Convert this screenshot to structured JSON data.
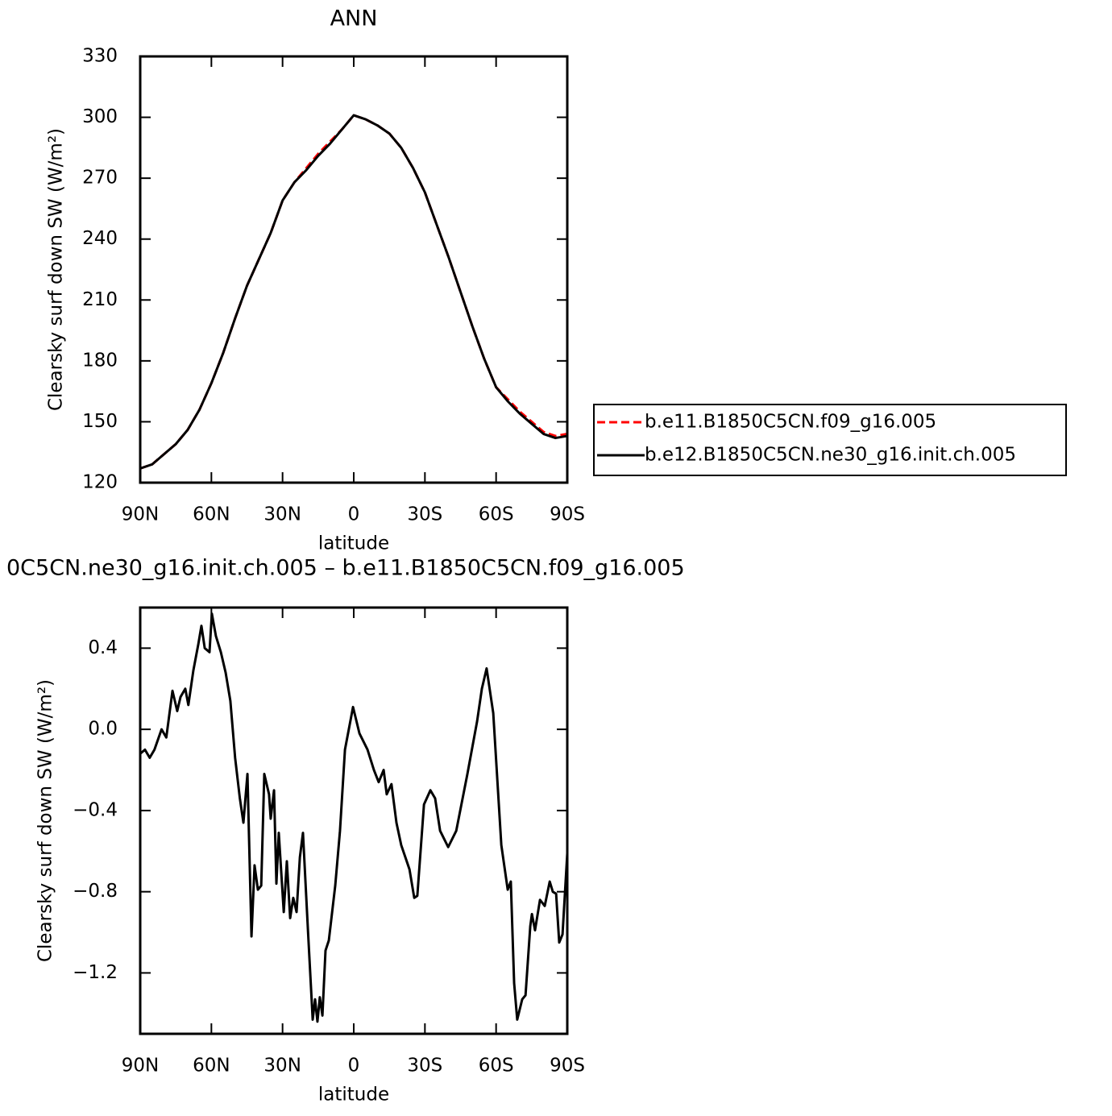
{
  "chart_data": [
    {
      "type": "line",
      "title": "ANN",
      "x_label": "latitude",
      "y_label": "Clearsky surf down SW (W/m²)",
      "x": [
        90,
        85,
        80,
        75,
        70,
        65,
        60,
        55,
        50,
        45,
        40,
        35,
        30,
        25,
        20,
        15,
        10,
        5,
        0,
        -5,
        -10,
        -15,
        -20,
        -25,
        -30,
        -35,
        -40,
        -45,
        -50,
        -55,
        -60,
        -65,
        -70,
        -75,
        -80,
        -85,
        -90
      ],
      "xlim": [
        90,
        -90
      ],
      "xticks": [
        {
          "value": 90,
          "label": "90N"
        },
        {
          "value": 60,
          "label": "60N"
        },
        {
          "value": 30,
          "label": "30N"
        },
        0,
        {
          "value": -30,
          "label": "30S"
        },
        {
          "value": -60,
          "label": "60S"
        },
        {
          "value": -90,
          "label": "90S"
        }
      ],
      "ylim": [
        120,
        330
      ],
      "yticks": [
        120,
        150,
        180,
        210,
        240,
        270,
        300,
        330
      ],
      "legend": "outside-right",
      "series": [
        {
          "name": "b.e11.B1850C5CN.f09_g16.005",
          "color": "#ff0000",
          "dash": "dashed",
          "values": [
            127,
            129,
            134,
            139,
            146,
            156,
            169,
            184,
            201,
            217,
            230,
            243,
            259,
            268,
            275,
            282,
            288,
            294,
            301,
            299,
            296,
            292,
            285,
            275,
            263,
            247,
            231,
            214,
            197,
            181,
            167,
            161,
            155,
            150,
            145,
            143,
            144
          ]
        },
        {
          "name": "b.e12.B1850C5CN.ne30_g16.init.ch.005",
          "color": "#000000",
          "dash": "solid",
          "values": [
            127,
            129,
            134,
            139,
            146,
            156,
            169,
            184,
            201,
            217,
            230,
            243,
            259,
            268,
            274,
            281,
            287,
            294,
            301,
            299,
            296,
            292,
            285,
            275,
            263,
            247,
            231,
            214,
            197,
            181,
            167,
            160,
            154,
            149,
            144,
            142,
            143
          ]
        }
      ]
    },
    {
      "type": "line",
      "title": "0C5CN.ne30_g16.init.ch.005 – b.e11.B1850C5CN.f09_g16.005",
      "x_label": "latitude",
      "y_label": "Clearsky surf down SW (W/m²)",
      "x": [
        90,
        88,
        86,
        84,
        81,
        79,
        76.4,
        74.4,
        73,
        71,
        69.7,
        67.6,
        65.5,
        64.2,
        62.8,
        60.8,
        59.8,
        58.1,
        56,
        54,
        52,
        50,
        48,
        46.5,
        44.8,
        43.1,
        41.8,
        40.4,
        39,
        37.7,
        35.7,
        35,
        33.6,
        32.6,
        31.6,
        29.5,
        28.2,
        26.8,
        25.5,
        24.1,
        22.7,
        21.4,
        19.3,
        17.3,
        16.3,
        15.3,
        14.3,
        13.2,
        11.9,
        10.5,
        7.8,
        5.8,
        3.7,
        0.3,
        -2.4,
        -5.8,
        -8.5,
        -10.5,
        -12.6,
        -13.9,
        -15.9,
        -18,
        -20,
        -23.5,
        -25.5,
        -26.8,
        -29.6,
        -32.3,
        -34.3,
        -36.4,
        -39.8,
        -43.2,
        -47.9,
        -52,
        -54,
        -56,
        -58.8,
        -62.2,
        -64.9,
        -66.2,
        -67.6,
        -68.9,
        -71,
        -72.4,
        -74.4,
        -75.1,
        -76.4,
        -78.5,
        -80.5,
        -82.6,
        -83.9,
        -85.3,
        -86.6,
        -88,
        -90
      ],
      "xlim": [
        90,
        -90
      ],
      "xticks": [
        {
          "value": 90,
          "label": "90N"
        },
        {
          "value": 60,
          "label": "60N"
        },
        {
          "value": 30,
          "label": "30N"
        },
        0,
        {
          "value": -30,
          "label": "30S"
        },
        {
          "value": -60,
          "label": "60S"
        },
        {
          "value": -90,
          "label": "90S"
        }
      ],
      "ylim": [
        -1.5,
        0.6
      ],
      "yticks": [
        {
          "value": -1.2,
          "label": "−1.2"
        },
        {
          "value": -0.8,
          "label": "−0.8"
        },
        {
          "value": -0.4,
          "label": "−0.4"
        },
        {
          "value": 0,
          "label": "0.0"
        },
        0.4
      ],
      "series": [
        {
          "color": "#000000",
          "dash": "solid",
          "values": [
            -0.12,
            -0.1,
            -0.14,
            -0.1,
            0.0,
            -0.04,
            0.19,
            0.09,
            0.16,
            0.2,
            0.12,
            0.29,
            0.42,
            0.51,
            0.4,
            0.38,
            0.57,
            0.46,
            0.38,
            0.28,
            0.14,
            -0.14,
            -0.34,
            -0.46,
            -0.22,
            -1.02,
            -0.67,
            -0.79,
            -0.77,
            -0.22,
            -0.32,
            -0.44,
            -0.3,
            -0.76,
            -0.51,
            -0.9,
            -0.65,
            -0.93,
            -0.83,
            -0.9,
            -0.63,
            -0.51,
            -0.99,
            -1.43,
            -1.33,
            -1.44,
            -1.32,
            -1.41,
            -1.09,
            -1.04,
            -0.77,
            -0.5,
            -0.1,
            0.11,
            -0.02,
            -0.1,
            -0.2,
            -0.26,
            -0.2,
            -0.32,
            -0.27,
            -0.46,
            -0.57,
            -0.69,
            -0.83,
            -0.82,
            -0.37,
            -0.3,
            -0.34,
            -0.5,
            -0.58,
            -0.5,
            -0.22,
            0.04,
            0.2,
            0.3,
            0.08,
            -0.57,
            -0.79,
            -0.75,
            -1.25,
            -1.43,
            -1.33,
            -1.31,
            -0.97,
            -0.91,
            -0.99,
            -0.84,
            -0.87,
            -0.75,
            -0.8,
            -0.81,
            -1.05,
            -1.01,
            -0.61
          ]
        }
      ]
    }
  ]
}
